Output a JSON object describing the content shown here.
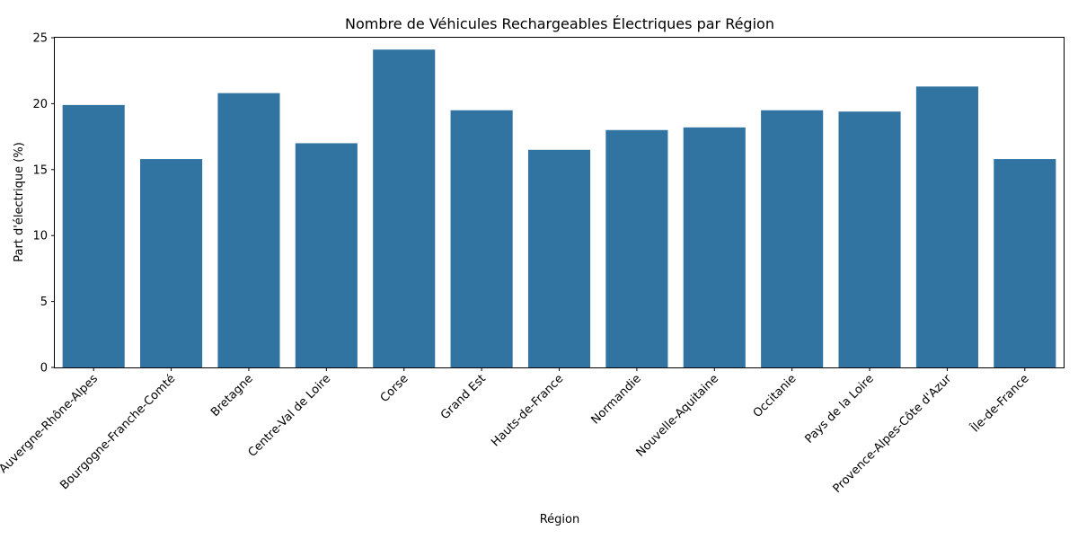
{
  "chart_data": {
    "type": "bar",
    "title": "Nombre de Véhicules Rechargeables Électriques par Région",
    "xlabel": "Région",
    "ylabel": "Part d'électrique (%)",
    "ylim": [
      0,
      25
    ],
    "yticks": [
      0,
      5,
      10,
      15,
      20,
      25
    ],
    "grid": false,
    "bar_color": "#3274a1",
    "categories": [
      "Auvergne-Rhône-Alpes",
      "Bourgogne-Franche-Comté",
      "Bretagne",
      "Centre-Val de Loire",
      "Corse",
      "Grand Est",
      "Hauts-de-France",
      "Normandie",
      "Nouvelle-Aquitaine",
      "Occitanie",
      "Pays de la Loire",
      "Provence-Alpes-Côte d'Azur",
      "Île-de-France"
    ],
    "values": [
      19.9,
      15.8,
      20.8,
      17.0,
      24.1,
      19.5,
      16.5,
      18.0,
      18.2,
      19.5,
      19.4,
      21.3,
      15.8
    ]
  }
}
